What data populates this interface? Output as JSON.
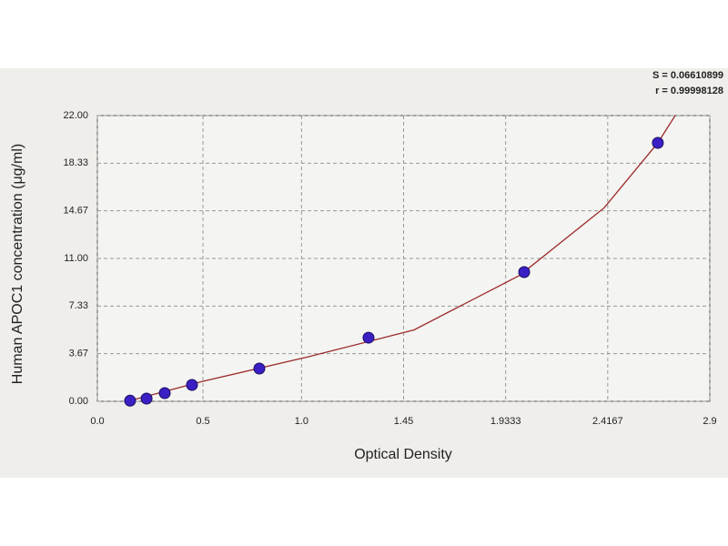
{
  "chart_data": {
    "type": "scatter",
    "x_label": "Optical Density",
    "y_label": "Human APOC1 concentration (μg/ml)",
    "annotations": [
      "S = 0.06610899",
      "r = 0.99998128"
    ],
    "xlim": [
      0,
      2.9
    ],
    "ylim": [
      0,
      22
    ],
    "xticks": [
      {
        "value": 0,
        "label": "0.0"
      },
      0.5,
      {
        "value": 0.9667,
        "label": "1.0"
      },
      1.45,
      1.9333,
      2.4167,
      2.9
    ],
    "yticks": [
      {
        "value": 0,
        "label": "0.00"
      },
      {
        "value": 3.667,
        "label": "3.67"
      },
      {
        "value": 7.333,
        "label": "7.33"
      },
      {
        "value": 11,
        "label": "11.00"
      },
      {
        "value": 14.667,
        "label": "14.67"
      },
      {
        "value": 18.333,
        "label": "18.33"
      },
      {
        "value": 22,
        "label": "22.00"
      }
    ],
    "grid": true,
    "series": [
      {
        "type": "scatter",
        "color": "#3b1fc4",
        "x": [
          0.155,
          0.233,
          0.319,
          0.448,
          0.767,
          1.284,
          2.021,
          2.654
        ],
        "values": [
          0.05,
          0.21,
          0.63,
          1.26,
          2.52,
          4.9,
          9.95,
          19.9
        ]
      },
      {
        "type": "line",
        "color": "#9b2a2a",
        "x": [
          0.155,
          0.5,
          1.0,
          1.5,
          2.0,
          2.4,
          2.654,
          2.736
        ],
        "values": [
          0.05,
          1.54,
          3.43,
          5.5,
          9.7,
          14.9,
          19.9,
          22
        ]
      }
    ]
  }
}
